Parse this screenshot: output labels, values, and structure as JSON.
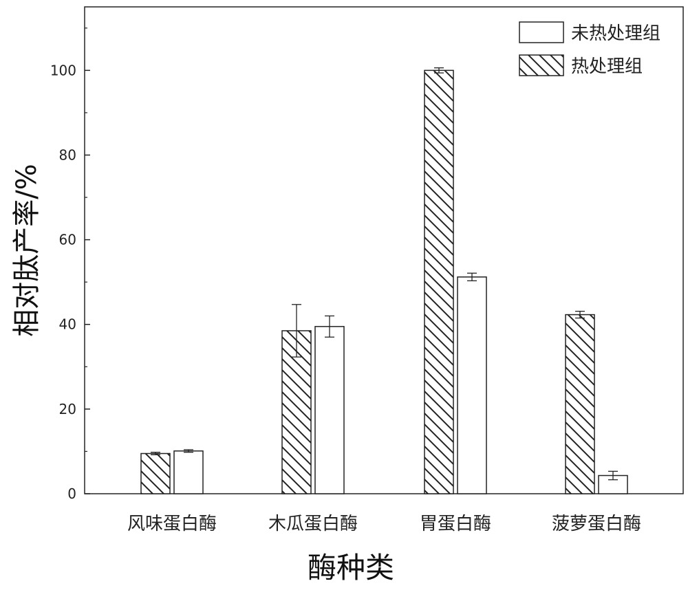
{
  "chart_data": {
    "type": "bar",
    "title": "",
    "xlabel": "酶种类",
    "ylabel": "相对肽产率/%",
    "ylim": [
      0,
      115
    ],
    "yticks": [
      0,
      20,
      40,
      60,
      80,
      100
    ],
    "grid": false,
    "legend_position": "top-right",
    "categories": [
      "风味蛋白酶",
      "木瓜蛋白酶",
      "胃蛋白酶",
      "菠萝蛋白酶"
    ],
    "series": [
      {
        "name": "热处理组",
        "pattern": "hatched",
        "values": [
          9.5,
          38.5,
          100,
          42.3
        ],
        "errors": [
          0.3,
          6.2,
          0.6,
          0.8
        ]
      },
      {
        "name": "未热处理组",
        "pattern": "empty",
        "values": [
          10.1,
          39.5,
          51.2,
          4.3
        ],
        "errors": [
          0.3,
          2.5,
          0.9,
          1.0
        ]
      }
    ],
    "legend_order": [
      1,
      0
    ]
  }
}
